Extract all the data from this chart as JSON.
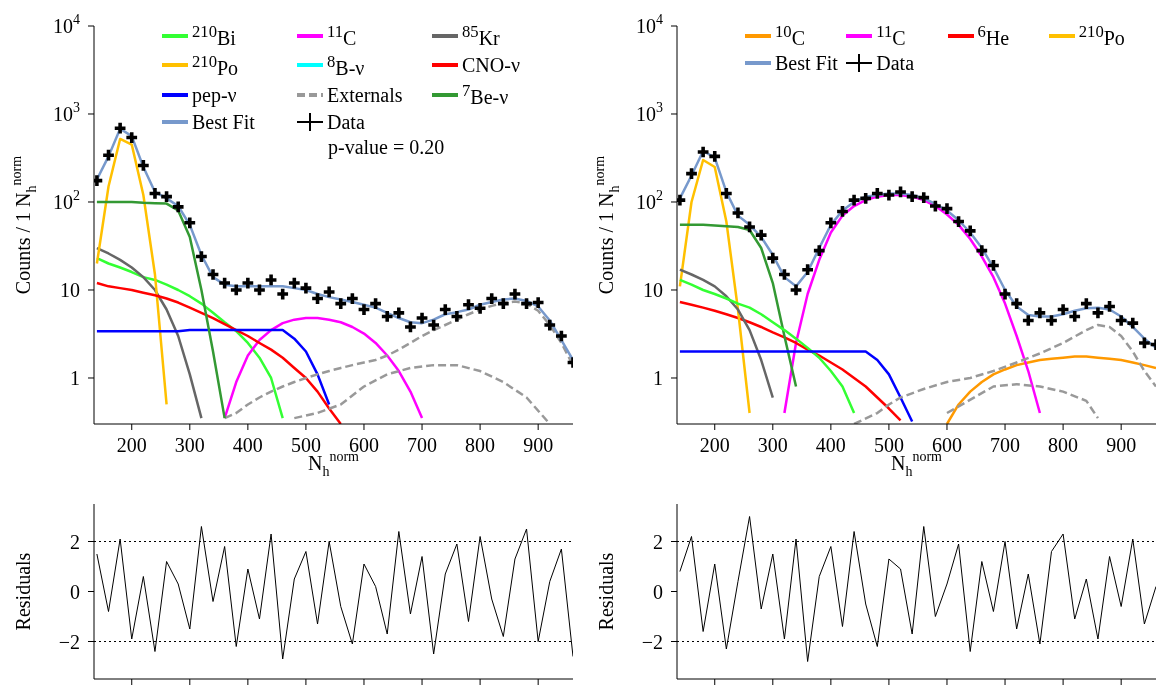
{
  "chart_data": [
    {
      "type": "line",
      "xlabel": "N$_{h}$$^{norm}$",
      "ylabel": "Counts / 1 N$_{h}$$^{norm}$",
      "log": "y",
      "xlim": [
        135,
        960
      ],
      "xticks": [
        200,
        300,
        400,
        500,
        600,
        700,
        800,
        900
      ],
      "ylim": [
        0.3,
        10000
      ],
      "yticks": [
        1,
        10,
        {
          "value": 100,
          "label": "10$^{2}$"
        },
        {
          "value": 1000,
          "label": "10$^{3}$"
        },
        {
          "value": 10000,
          "label": "10$^{4}$"
        }
      ],
      "legend": "top",
      "annotations": [
        "p-value = 0.20"
      ],
      "x": [
        140,
        160,
        180,
        200,
        220,
        240,
        260,
        280,
        300,
        320,
        340,
        360,
        380,
        400,
        420,
        440,
        460,
        480,
        500,
        520,
        540,
        560,
        580,
        600,
        620,
        640,
        660,
        680,
        700,
        720,
        740,
        760,
        780,
        800,
        820,
        840,
        860,
        880,
        900,
        920,
        940,
        960
      ],
      "series": [
        {
          "name": "$^{210}$Bi",
          "color": "#33ff33",
          "x": [
            140,
            160,
            180,
            200,
            220,
            240,
            260,
            280,
            300,
            320,
            340,
            360,
            380,
            400,
            420,
            440,
            460
          ],
          "values": [
            23,
            20,
            18,
            16,
            14,
            13,
            11.5,
            10,
            8.5,
            7,
            5.5,
            4.3,
            3.4,
            2.5,
            1.7,
            1,
            0.35
          ]
        },
        {
          "name": "$^{11}$C",
          "color": "#ff00ff",
          "x": [
            360,
            380,
            400,
            420,
            440,
            460,
            480,
            500,
            520,
            540,
            560,
            580,
            600,
            620,
            640,
            660,
            680,
            700
          ],
          "values": [
            0.35,
            0.9,
            1.8,
            2.7,
            3.5,
            4.2,
            4.6,
            4.8,
            4.8,
            4.6,
            4.3,
            3.8,
            3.2,
            2.5,
            1.8,
            1.2,
            0.7,
            0.35
          ]
        },
        {
          "name": "$^{85}$Kr",
          "color": "#666666",
          "x": [
            140,
            160,
            180,
            200,
            220,
            240,
            260,
            280,
            300,
            320
          ],
          "values": [
            30,
            26,
            22,
            18,
            14,
            10,
            6,
            3,
            1.1,
            0.35
          ]
        },
        {
          "name": "$^{210}$Po",
          "color": "#ffc000",
          "x": [
            140,
            160,
            180,
            200,
            220,
            240,
            260
          ],
          "values": [
            20,
            150,
            520,
            450,
            120,
            15,
            0.5
          ]
        },
        {
          "name": "$^{8}$B-ν",
          "color": "#00ffff",
          "values": [
            null,
            null,
            null,
            null,
            null,
            null,
            null,
            null,
            null,
            null,
            null,
            null,
            null,
            null,
            null,
            null,
            null,
            null,
            null,
            null,
            null,
            null,
            null,
            null,
            null,
            null,
            null,
            null,
            null,
            null,
            null,
            null,
            null,
            null,
            null,
            null,
            null,
            null,
            null,
            null,
            null,
            null
          ]
        },
        {
          "name": "CNO-ν",
          "color": "#ff0000",
          "x": [
            140,
            160,
            180,
            200,
            220,
            240,
            260,
            280,
            300,
            320,
            340,
            360,
            380,
            400,
            420,
            440,
            460,
            480,
            500,
            520,
            540,
            560
          ],
          "values": [
            12,
            11,
            10.5,
            10,
            9.3,
            8.7,
            8,
            7.2,
            6.3,
            5.5,
            4.8,
            4.1,
            3.5,
            3,
            2.5,
            2.1,
            1.7,
            1.3,
            1.0,
            0.7,
            0.45,
            0.3
          ]
        },
        {
          "name": "pep-ν",
          "color": "#0000ff",
          "x": [
            140,
            160,
            180,
            200,
            220,
            240,
            260,
            280,
            300,
            320,
            340,
            360,
            380,
            400,
            420,
            440,
            460,
            480,
            500,
            520,
            540
          ],
          "values": [
            3.4,
            3.4,
            3.4,
            3.4,
            3.4,
            3.4,
            3.4,
            3.4,
            3.5,
            3.5,
            3.5,
            3.5,
            3.5,
            3.5,
            3.5,
            3.5,
            3.5,
            2.8,
            2.0,
            1.1,
            0.5
          ]
        },
        {
          "name": "Externals",
          "color": "#999999",
          "line_style": "dashed",
          "x": [
            360,
            380,
            400,
            420,
            440,
            460,
            480,
            500,
            520,
            540,
            560,
            580,
            600,
            620,
            640,
            660,
            680,
            700,
            720,
            740,
            760,
            780,
            800,
            820,
            840,
            860,
            880,
            900,
            920,
            940,
            960
          ],
          "values": [
            0.35,
            0.4,
            0.5,
            0.6,
            0.7,
            0.8,
            0.9,
            1.0,
            1.1,
            1.2,
            1.3,
            1.4,
            1.5,
            1.6,
            1.8,
            2.1,
            2.5,
            3.0,
            3.5,
            4.0,
            4.6,
            5.3,
            6.0,
            6.6,
            7.1,
            7.4,
            7.0,
            5.8,
            4.0,
            2.5,
            1.4
          ]
        },
        {
          "name": "$^{7}$Be-ν",
          "color": "#339933",
          "x": [
            140,
            160,
            180,
            200,
            220,
            240,
            260,
            280,
            300,
            320,
            340,
            360
          ],
          "values": [
            100,
            100,
            100,
            100,
            98,
            97,
            96,
            80,
            40,
            10,
            2,
            0.35
          ]
        },
        {
          "name": "Best Fit",
          "color": "#7799cc",
          "values": [
            180,
            330,
            680,
            560,
            250,
            130,
            110,
            90,
            55,
            25,
            14,
            11.5,
            11,
            11,
            11,
            11,
            11,
            10.5,
            10,
            9,
            8.3,
            7.8,
            7.3,
            6.8,
            6.3,
            5.5,
            4.8,
            4.3,
            4.2,
            4.6,
            5.3,
            5.6,
            6.0,
            6.8,
            7.3,
            7.8,
            8.0,
            7.5,
            6.5,
            4.5,
            2.7,
            1.6
          ]
        },
        {
          "name": "Data",
          "color": "#000000",
          "type": "scatter",
          "marker": "cross",
          "values": [
            175,
            340,
            690,
            540,
            260,
            125,
            115,
            88,
            58,
            24,
            15,
            12,
            10,
            12,
            10,
            13,
            9,
            12,
            10.5,
            8,
            9.5,
            7,
            8,
            6,
            7,
            5,
            5.5,
            3.8,
            4.8,
            4,
            6,
            5,
            6.8,
            6.2,
            8,
            7,
            9,
            7,
            7.2,
            4,
            3,
            1.5
          ]
        },
        {
          "color": "#999999",
          "line_style": "dashed",
          "x": [
            480,
            520,
            560,
            600,
            640,
            680,
            720,
            760,
            800,
            840,
            880,
            920
          ],
          "values": [
            0.35,
            0.4,
            0.5,
            0.8,
            1.1,
            1.3,
            1.4,
            1.4,
            1.2,
            0.9,
            0.6,
            0.3
          ]
        }
      ]
    },
    {
      "type": "line",
      "xlabel": "N$_{h}$$^{norm}$",
      "ylabel": "Counts / 1 N$_{h}$$^{norm}$",
      "log": "y",
      "xlim": [
        135,
        960
      ],
      "xticks": [
        200,
        300,
        400,
        500,
        600,
        700,
        800,
        900
      ],
      "ylim": [
        0.3,
        10000
      ],
      "yticks": [
        1,
        10,
        {
          "value": 100,
          "label": "10$^{2}$"
        },
        {
          "value": 1000,
          "label": "10$^{3}$"
        },
        {
          "value": 10000,
          "label": "10$^{4}$"
        }
      ],
      "legend": "top",
      "x": [
        140,
        160,
        180,
        200,
        220,
        240,
        260,
        280,
        300,
        320,
        340,
        360,
        380,
        400,
        420,
        440,
        460,
        480,
        500,
        520,
        540,
        560,
        580,
        600,
        620,
        640,
        660,
        680,
        700,
        720,
        740,
        760,
        780,
        800,
        820,
        840,
        860,
        880,
        900,
        920,
        940,
        960
      ],
      "series": [
        {
          "name": "$^{10}$C",
          "color": "#ff9900",
          "x": [
            600,
            620,
            640,
            660,
            680,
            700,
            720,
            740,
            760,
            780,
            800,
            820,
            840,
            860,
            880,
            900,
            920,
            940,
            960
          ],
          "values": [
            0.3,
            0.5,
            0.7,
            0.9,
            1.1,
            1.25,
            1.4,
            1.5,
            1.6,
            1.65,
            1.7,
            1.75,
            1.75,
            1.7,
            1.65,
            1.6,
            1.5,
            1.4,
            1.3
          ]
        },
        {
          "name": "$^{11}$C",
          "color": "#ff00ff",
          "x": [
            320,
            340,
            360,
            380,
            400,
            420,
            440,
            460,
            480,
            500,
            520,
            540,
            560,
            580,
            600,
            620,
            640,
            660,
            680,
            700,
            720,
            740,
            760
          ],
          "values": [
            0.4,
            2.5,
            9,
            22,
            45,
            70,
            90,
            105,
            115,
            120,
            120,
            115,
            105,
            90,
            72,
            55,
            38,
            24,
            14,
            7,
            3,
            1.2,
            0.4
          ]
        },
        {
          "name": "$^{6}$He",
          "color": "#ff0000",
          "x": [
            140,
            160,
            180,
            200,
            220,
            240,
            260,
            280,
            300,
            320,
            340,
            360,
            380,
            400,
            420,
            440,
            460,
            480,
            500,
            520
          ],
          "values": [
            7.3,
            6.8,
            6.3,
            5.8,
            5.3,
            4.8,
            4.3,
            3.8,
            3.3,
            2.9,
            2.5,
            2.1,
            1.8,
            1.5,
            1.25,
            1.0,
            0.8,
            0.6,
            0.45,
            0.33
          ]
        },
        {
          "name": "$^{210}$Po",
          "color": "#ffc000",
          "x": [
            140,
            160,
            180,
            200,
            220,
            240,
            260
          ],
          "values": [
            11,
            100,
            300,
            250,
            60,
            6,
            0.4
          ]
        },
        {
          "name": "Best Fit",
          "color": "#7799cc",
          "values": [
            110,
            200,
            380,
            320,
            130,
            70,
            55,
            40,
            25,
            14,
            11,
            16,
            30,
            55,
            80,
            100,
            115,
            120,
            125,
            125,
            120,
            110,
            95,
            80,
            62,
            45,
            30,
            18,
            10,
            6.5,
            5.2,
            5.0,
            5.0,
            5.3,
            5.8,
            6.2,
            6.3,
            6.0,
            5.0,
            3.8,
            2.8,
            2.2
          ]
        },
        {
          "name": "Data",
          "color": "#000000",
          "type": "scatter",
          "marker": "cross",
          "values": [
            105,
            210,
            370,
            330,
            125,
            75,
            52,
            42,
            23,
            15,
            10,
            17,
            28,
            58,
            78,
            105,
            110,
            125,
            120,
            130,
            115,
            112,
            90,
            84,
            60,
            47,
            28,
            19,
            9,
            7,
            4.5,
            5.5,
            4.5,
            6,
            5,
            7,
            5.5,
            6.5,
            4.5,
            4.2,
            2.5,
            2.4
          ]
        },
        {
          "color": "#339933",
          "x": [
            140,
            160,
            180,
            200,
            220,
            240,
            260,
            280,
            300,
            320,
            340
          ],
          "values": [
            55,
            55,
            55,
            54,
            53,
            52,
            48,
            30,
            12,
            3,
            0.8
          ]
        },
        {
          "color": "#666666",
          "x": [
            140,
            160,
            180,
            200,
            220,
            240,
            260,
            280,
            300
          ],
          "values": [
            17,
            15,
            13,
            11,
            8.5,
            6,
            3.5,
            1.6,
            0.6
          ]
        },
        {
          "color": "#33ff33",
          "x": [
            140,
            160,
            180,
            200,
            220,
            240,
            260,
            280,
            300,
            320,
            340,
            360,
            380,
            400,
            420,
            440
          ],
          "values": [
            13,
            11.5,
            10,
            9,
            8,
            7,
            6.3,
            5.3,
            4.3,
            3.5,
            2.8,
            2.2,
            1.7,
            1.2,
            0.8,
            0.4
          ]
        },
        {
          "color": "#0000ff",
          "x": [
            140,
            160,
            180,
            200,
            220,
            240,
            260,
            280,
            300,
            320,
            340,
            360,
            380,
            400,
            420,
            440,
            460,
            480,
            500,
            520,
            540
          ],
          "values": [
            2,
            2,
            2,
            2,
            2,
            2,
            2,
            2,
            2,
            2,
            2,
            2,
            2,
            2,
            2,
            2,
            2,
            1.6,
            1.1,
            0.6,
            0.32
          ]
        },
        {
          "color": "#999999",
          "line_style": "dashed",
          "x": [
            440,
            480,
            500,
            520,
            560,
            600,
            640,
            680,
            720,
            760,
            800,
            840,
            860,
            880,
            900,
            920,
            940,
            960
          ],
          "values": [
            0.3,
            0.4,
            0.5,
            0.6,
            0.75,
            0.9,
            1.0,
            1.2,
            1.5,
            1.9,
            2.5,
            3.5,
            4.0,
            3.8,
            3.0,
            2.0,
            1.2,
            0.8
          ]
        },
        {
          "color": "#999999",
          "line_style": "dashed",
          "x": [
            600,
            680,
            720,
            760,
            800,
            840,
            860
          ],
          "values": [
            0.4,
            0.8,
            0.85,
            0.8,
            0.7,
            0.55,
            0.35
          ]
        }
      ]
    },
    {
      "type": "line",
      "ylabel": "Residuals",
      "xlim": [
        135,
        960
      ],
      "xticks": [
        200,
        300,
        400,
        500,
        600,
        700,
        800,
        900
      ],
      "ylim": [
        -3.5,
        3.5
      ],
      "yticks": [
        -2,
        0,
        2
      ],
      "tick_labels": "y",
      "ref_lines": [
        {
          "axis": "y",
          "value": 2,
          "line_style": "dotted"
        },
        {
          "axis": "y",
          "value": -2,
          "line_style": "dotted"
        }
      ],
      "x": [
        140,
        160,
        180,
        200,
        220,
        240,
        260,
        280,
        300,
        320,
        340,
        360,
        380,
        400,
        420,
        440,
        460,
        480,
        500,
        520,
        540,
        560,
        580,
        600,
        620,
        640,
        660,
        680,
        700,
        720,
        740,
        760,
        780,
        800,
        820,
        840,
        860,
        880,
        900,
        920,
        940,
        960
      ],
      "series": [
        {
          "color": "#000000",
          "values": [
            1.5,
            -0.8,
            2.1,
            -1.9,
            0.6,
            -2.4,
            1.2,
            0.3,
            -1.5,
            2.6,
            -0.4,
            1.8,
            -2.2,
            0.9,
            -1.1,
            2.3,
            -2.7,
            0.5,
            1.6,
            -1.3,
            2.0,
            -0.6,
            -2.1,
            1.1,
            0.2,
            -1.7,
            2.4,
            -0.9,
            1.4,
            -2.5,
            0.7,
            1.9,
            -1.2,
            2.2,
            -0.3,
            -1.8,
            1.3,
            2.5,
            -2.0,
            0.4,
            1.7,
            -2.6
          ]
        }
      ]
    },
    {
      "type": "line",
      "ylabel": "Residuals",
      "xlim": [
        135,
        960
      ],
      "xticks": [
        200,
        300,
        400,
        500,
        600,
        700,
        800,
        900
      ],
      "ylim": [
        -3.5,
        3.5
      ],
      "yticks": [
        -2,
        0,
        2
      ],
      "tick_labels": "y",
      "ref_lines": [
        {
          "axis": "y",
          "value": 2,
          "line_style": "dotted"
        },
        {
          "axis": "y",
          "value": -2,
          "line_style": "dotted"
        }
      ],
      "x": [
        140,
        160,
        180,
        200,
        220,
        240,
        260,
        280,
        300,
        320,
        340,
        360,
        380,
        400,
        420,
        440,
        460,
        480,
        500,
        520,
        540,
        560,
        580,
        600,
        620,
        640,
        660,
        680,
        700,
        720,
        740,
        760,
        780,
        800,
        820,
        840,
        860,
        880,
        900,
        920,
        940,
        960
      ],
      "series": [
        {
          "color": "#000000",
          "values": [
            0.8,
            2.2,
            -1.6,
            1.1,
            -2.3,
            0.4,
            3.0,
            -0.7,
            1.5,
            -1.9,
            2.1,
            -2.8,
            0.6,
            1.8,
            -1.4,
            2.4,
            -0.5,
            -2.2,
            1.3,
            0.9,
            -1.7,
            2.6,
            -1.0,
            0.3,
            1.9,
            -2.4,
            1.2,
            -0.8,
            2.0,
            -1.5,
            0.7,
            -2.1,
            1.6,
            2.3,
            -1.1,
            0.5,
            -1.9,
            1.4,
            -0.6,
            2.1,
            -1.3,
            0.2
          ]
        }
      ]
    }
  ]
}
